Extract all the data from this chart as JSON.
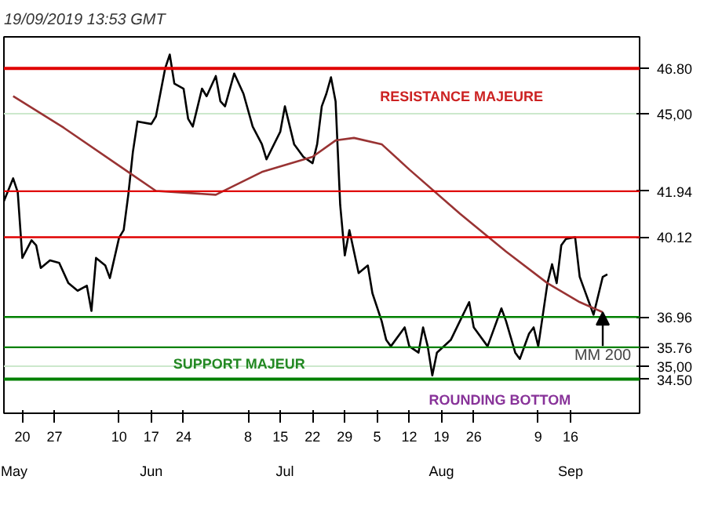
{
  "chart_data": {
    "type": "line",
    "title": "19/09/2019 13:53 GMT",
    "xlim": [
      "2019-05-16",
      "2019-10-01"
    ],
    "xticks": [
      {
        "value": "2019-05-20",
        "label": "20"
      },
      {
        "value": "2019-05-27",
        "label": "27"
      },
      {
        "value": "2019-06-10",
        "label": "10"
      },
      {
        "value": "2019-06-17",
        "label": "17"
      },
      {
        "value": "2019-06-24",
        "label": "24"
      },
      {
        "value": "2019-07-08",
        "label": "8"
      },
      {
        "value": "2019-07-15",
        "label": "15"
      },
      {
        "value": "2019-07-22",
        "label": "22"
      },
      {
        "value": "2019-07-29",
        "label": "29"
      },
      {
        "value": "2019-08-05",
        "label": "5"
      },
      {
        "value": "2019-08-12",
        "label": "12"
      },
      {
        "value": "2019-08-19",
        "label": "19"
      },
      {
        "value": "2019-08-26",
        "label": "26"
      },
      {
        "value": "2019-09-09",
        "label": "9"
      },
      {
        "value": "2019-09-16",
        "label": "16"
      }
    ],
    "x2lim": [
      "2019-05-16",
      "2019-10-01"
    ],
    "x2ticks": [
      {
        "value": "2019-05-17",
        "label": "May"
      },
      {
        "value": "2019-06-17",
        "label": "Jun"
      },
      {
        "value": "2019-07-16",
        "label": "Jul"
      },
      {
        "value": "2019-08-19",
        "label": "Aug"
      },
      {
        "value": "2019-09-16",
        "label": "Sep"
      }
    ],
    "ylim": [
      33.15,
      48.05
    ],
    "yticks": [
      {
        "value": 45,
        "label": "45,00"
      },
      {
        "value": 35,
        "label": "35,00"
      }
    ],
    "grid": "y",
    "series": [
      {
        "color": "#000000",
        "x": [
          "2019-05-16",
          "2019-05-18",
          "2019-05-19",
          "2019-05-20",
          "2019-05-22",
          "2019-05-23",
          "2019-05-24",
          "2019-05-26",
          "2019-05-28",
          "2019-05-30",
          "2019-06-01",
          "2019-06-03",
          "2019-06-04",
          "2019-06-05",
          "2019-06-07",
          "2019-06-08",
          "2019-06-10",
          "2019-06-11",
          "2019-06-12",
          "2019-06-13",
          "2019-06-14",
          "2019-06-17",
          "2019-06-18",
          "2019-06-20",
          "2019-06-21",
          "2019-06-22",
          "2019-06-24",
          "2019-06-25",
          "2019-06-26",
          "2019-06-28",
          "2019-06-29",
          "2019-07-01",
          "2019-07-02",
          "2019-07-03",
          "2019-07-05",
          "2019-07-07",
          "2019-07-09",
          "2019-07-11",
          "2019-07-12",
          "2019-07-15",
          "2019-07-16",
          "2019-07-18",
          "2019-07-20",
          "2019-07-22",
          "2019-07-23",
          "2019-07-24",
          "2019-07-25",
          "2019-07-26",
          "2019-07-27",
          "2019-07-28",
          "2019-07-29",
          "2019-07-30",
          "2019-08-01",
          "2019-08-03",
          "2019-08-04",
          "2019-08-06",
          "2019-08-07",
          "2019-08-08",
          "2019-08-11",
          "2019-08-12",
          "2019-08-14",
          "2019-08-15",
          "2019-08-16",
          "2019-08-17",
          "2019-08-18",
          "2019-08-21",
          "2019-08-23",
          "2019-08-25",
          "2019-08-26",
          "2019-08-29",
          "2019-09-01",
          "2019-09-02",
          "2019-09-04",
          "2019-09-05",
          "2019-09-07",
          "2019-09-08",
          "2019-09-09",
          "2019-09-10",
          "2019-09-11",
          "2019-09-12",
          "2019-09-13",
          "2019-09-14",
          "2019-09-15",
          "2019-09-17",
          "2019-09-18",
          "2019-09-19",
          "2019-09-20",
          "2019-09-21",
          "2019-09-22",
          "2019-09-23",
          "2019-09-24"
        ],
        "values": [
          41.55,
          42.45,
          41.9,
          39.3,
          40.0,
          39.8,
          38.9,
          39.2,
          39.1,
          38.3,
          38.0,
          38.2,
          37.2,
          39.3,
          39.0,
          38.5,
          40.1,
          40.4,
          41.8,
          43.5,
          44.7,
          44.6,
          44.9,
          46.8,
          47.35,
          46.2,
          46.0,
          44.8,
          44.5,
          46.0,
          45.7,
          46.5,
          45.5,
          45.3,
          46.6,
          45.8,
          44.5,
          43.8,
          43.2,
          44.3,
          45.3,
          43.8,
          43.3,
          43.05,
          43.8,
          45.3,
          45.8,
          46.45,
          45.5,
          41.4,
          39.4,
          40.4,
          38.7,
          39.0,
          37.9,
          36.8,
          36.05,
          35.8,
          36.55,
          35.8,
          35.55,
          36.55,
          35.8,
          34.65,
          35.55,
          36.05,
          36.8,
          37.55,
          36.55,
          35.8,
          37.3,
          36.8,
          35.55,
          35.3,
          36.3,
          36.55,
          35.8,
          37.05,
          38.3,
          39.05,
          38.3,
          39.8,
          40.05,
          40.12,
          38.55,
          38.05,
          37.55,
          37.05,
          37.8,
          38.55,
          38.65
        ]
      },
      {
        "name": "MM 200",
        "color": "#993333",
        "x": [
          "2019-05-18",
          "2019-05-29",
          "2019-06-12",
          "2019-06-18",
          "2019-07-01",
          "2019-07-11",
          "2019-07-22",
          "2019-07-27",
          "2019-07-31",
          "2019-08-06",
          "2019-08-12",
          "2019-08-23",
          "2019-09-02",
          "2019-09-11",
          "2019-09-18",
          "2019-09-23"
        ],
        "values": [
          45.7,
          44.45,
          42.7,
          41.95,
          41.8,
          42.7,
          43.3,
          43.95,
          44.05,
          43.8,
          42.8,
          41.05,
          39.55,
          38.3,
          37.55,
          37.15
        ]
      }
    ],
    "ref_lines": [
      {
        "axis": "y",
        "value": 46.8,
        "label": "46.80",
        "color": "#e00000"
      },
      {
        "axis": "y",
        "value": 41.94,
        "label": "41.94",
        "color": "#e00000"
      },
      {
        "axis": "y",
        "value": 40.12,
        "label": "40.12",
        "color": "#e00000"
      },
      {
        "axis": "y",
        "value": 36.96,
        "label": "36.96",
        "color": "#008000"
      },
      {
        "axis": "y",
        "value": 35.76,
        "label": "35.76",
        "color": "#008000"
      },
      {
        "axis": "y",
        "value": 34.5,
        "label": "34.50",
        "color": "#008000"
      }
    ],
    "annotations": [
      "RESISTANCE MAJEURE",
      "SUPPORT MAJEUR",
      "ROUNDING BOTTOM"
    ]
  }
}
